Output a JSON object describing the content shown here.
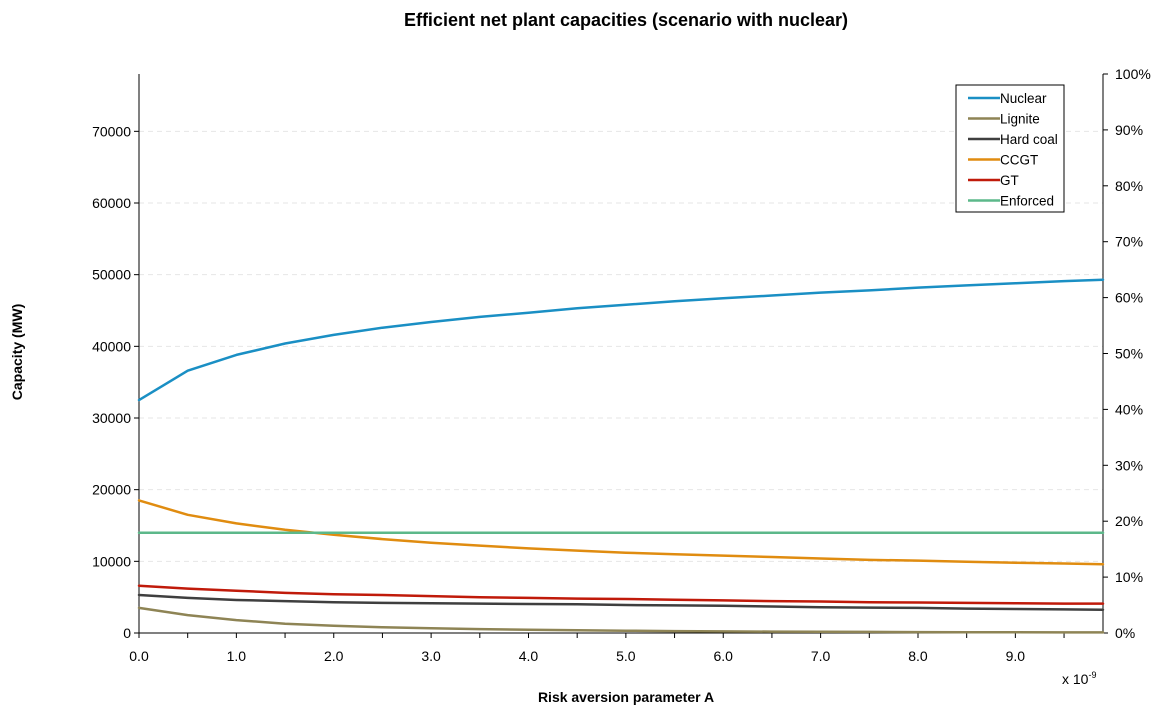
{
  "chart_data": {
    "type": "line",
    "title": "Efficient net plant capacities (scenario with nuclear)",
    "xlabel": "Risk aversion parameter A",
    "ylabel": "Capacity (MW)",
    "x_multiplier_label": "x 10",
    "x_multiplier_exp": "-9",
    "xlim": [
      0,
      9.9
    ],
    "ylim": [
      0,
      78000
    ],
    "y2lim": [
      0,
      100
    ],
    "x_ticks": [
      0.0,
      1.0,
      2.0,
      3.0,
      4.0,
      5.0,
      6.0,
      7.0,
      8.0,
      9.0
    ],
    "x_tick_labels": [
      "0.0",
      "1.0",
      "2.0",
      "3.0",
      "4.0",
      "5.0",
      "6.0",
      "7.0",
      "8.0",
      "9.0"
    ],
    "y_ticks": [
      0,
      10000,
      20000,
      30000,
      40000,
      50000,
      60000,
      70000
    ],
    "y_tick_labels": [
      "0",
      "10000",
      "20000",
      "30000",
      "40000",
      "50000",
      "60000",
      "70000"
    ],
    "y2_ticks": [
      0,
      10,
      20,
      30,
      40,
      50,
      60,
      70,
      80,
      90,
      100
    ],
    "y2_tick_labels": [
      "0%",
      "10%",
      "20%",
      "30%",
      "40%",
      "50%",
      "60%",
      "70%",
      "80%",
      "90%",
      "100%"
    ],
    "grid": "horizontal dashed",
    "legend_position": "top-right",
    "x": [
      0.0,
      0.5,
      1.0,
      1.5,
      2.0,
      2.5,
      3.0,
      3.5,
      4.0,
      4.5,
      5.0,
      5.5,
      6.0,
      6.5,
      7.0,
      7.5,
      8.0,
      8.5,
      9.0,
      9.5,
      9.9
    ],
    "series": [
      {
        "name": "Nuclear",
        "color": "#1a8fc4",
        "values": [
          32500,
          36600,
          38800,
          40400,
          41600,
          42600,
          43400,
          44100,
          44700,
          45300,
          45800,
          46300,
          46700,
          47100,
          47500,
          47800,
          48200,
          48500,
          48800,
          49100,
          49300
        ]
      },
      {
        "name": "Lignite",
        "color": "#8e8455",
        "values": [
          3500,
          2500,
          1800,
          1300,
          1000,
          800,
          650,
          550,
          450,
          380,
          320,
          270,
          230,
          200,
          170,
          150,
          130,
          110,
          100,
          90,
          80
        ]
      },
      {
        "name": "Hard coal",
        "color": "#3f3f3f",
        "values": [
          5300,
          4900,
          4600,
          4450,
          4300,
          4200,
          4150,
          4100,
          4050,
          4000,
          3900,
          3850,
          3800,
          3700,
          3600,
          3550,
          3500,
          3400,
          3350,
          3300,
          3250
        ]
      },
      {
        "name": "CCGT",
        "color": "#e08c10",
        "values": [
          18500,
          16500,
          15300,
          14400,
          13700,
          13100,
          12600,
          12200,
          11800,
          11500,
          11200,
          11000,
          10800,
          10600,
          10400,
          10200,
          10100,
          9950,
          9800,
          9700,
          9600
        ]
      },
      {
        "name": "GT",
        "color": "#c01a0a",
        "values": [
          6600,
          6200,
          5900,
          5600,
          5400,
          5300,
          5150,
          5000,
          4900,
          4800,
          4750,
          4650,
          4550,
          4450,
          4400,
          4300,
          4250,
          4200,
          4150,
          4100,
          4100
        ]
      },
      {
        "name": "Enforced",
        "color": "#5cb88a",
        "values": [
          14000,
          14000,
          14000,
          14000,
          14000,
          14000,
          14000,
          14000,
          14000,
          14000,
          14000,
          14000,
          14000,
          14000,
          14000,
          14000,
          14000,
          14000,
          14000,
          14000,
          14000
        ]
      }
    ]
  }
}
